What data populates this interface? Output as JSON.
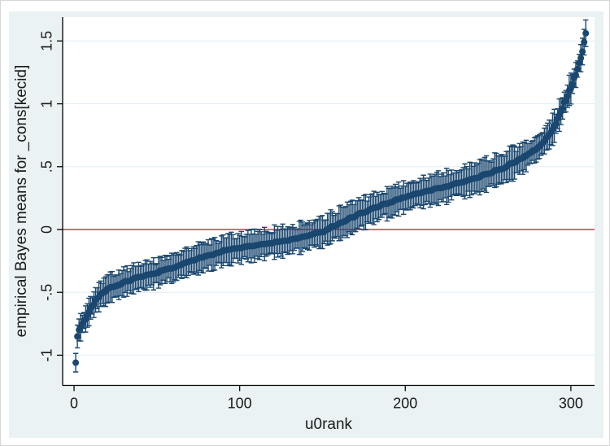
{
  "figure": {
    "background_color": "#eaf2f3",
    "plot_background_color": "#ffffff",
    "axis_color": "#000000",
    "grid_color": "#e3edf5",
    "marker_color": "#1a476f",
    "refline_color": "#d96a73",
    "text_color": "#1a1a1a"
  },
  "chart_data": {
    "type": "scatter",
    "title": "",
    "xlabel": "u0rank",
    "ylabel": "empirical Bayes means for _cons[kecid]",
    "legend": "none",
    "grid": "horizontal",
    "error_bars": true,
    "refline_y": 0,
    "xlim": [
      -6.9,
      314.3
    ],
    "ylim": [
      -1.24,
      1.69
    ],
    "xticks": [
      {
        "value": 0,
        "label": "0"
      },
      {
        "value": 100,
        "label": "100"
      },
      {
        "value": 200,
        "label": "200"
      },
      {
        "value": 300,
        "label": "300"
      }
    ],
    "yticks": [
      {
        "value": -1,
        "label": "-1"
      },
      {
        "value": -0.5,
        "label": "-.5"
      },
      {
        "value": 0,
        "label": "0"
      },
      {
        "value": 0.5,
        "label": ".5"
      },
      {
        "value": 1,
        "label": "1"
      },
      {
        "value": 1.5,
        "label": "1.5"
      }
    ],
    "n_points": 309,
    "x_start_rank": 1,
    "mean_anchors": [
      [
        1,
        -1.07
      ],
      [
        2,
        -0.84
      ],
      [
        3,
        -0.8
      ],
      [
        5,
        -0.75
      ],
      [
        8,
        -0.68
      ],
      [
        12,
        -0.59
      ],
      [
        16,
        -0.52
      ],
      [
        22,
        -0.46
      ],
      [
        30,
        -0.42
      ],
      [
        40,
        -0.38
      ],
      [
        55,
        -0.32
      ],
      [
        75,
        -0.225
      ],
      [
        95,
        -0.155
      ],
      [
        115,
        -0.115
      ],
      [
        130,
        -0.085
      ],
      [
        142,
        -0.05
      ],
      [
        152,
        -0.01
      ],
      [
        162,
        0.06
      ],
      [
        172,
        0.12
      ],
      [
        185,
        0.19
      ],
      [
        200,
        0.26
      ],
      [
        215,
        0.31
      ],
      [
        230,
        0.36
      ],
      [
        245,
        0.42
      ],
      [
        258,
        0.48
      ],
      [
        268,
        0.55
      ],
      [
        278,
        0.63
      ],
      [
        285,
        0.72
      ],
      [
        291,
        0.84
      ],
      [
        296,
        1.0
      ],
      [
        300,
        1.13
      ],
      [
        303,
        1.23
      ],
      [
        305,
        1.32
      ],
      [
        307,
        1.42
      ],
      [
        309,
        1.55
      ]
    ],
    "ci_halfwidth_anchors": [
      [
        1,
        0.085
      ],
      [
        30,
        0.1
      ],
      [
        100,
        0.105
      ],
      [
        180,
        0.11
      ],
      [
        250,
        0.115
      ],
      [
        290,
        0.105
      ],
      [
        305,
        0.09
      ],
      [
        309,
        0.085
      ]
    ]
  }
}
